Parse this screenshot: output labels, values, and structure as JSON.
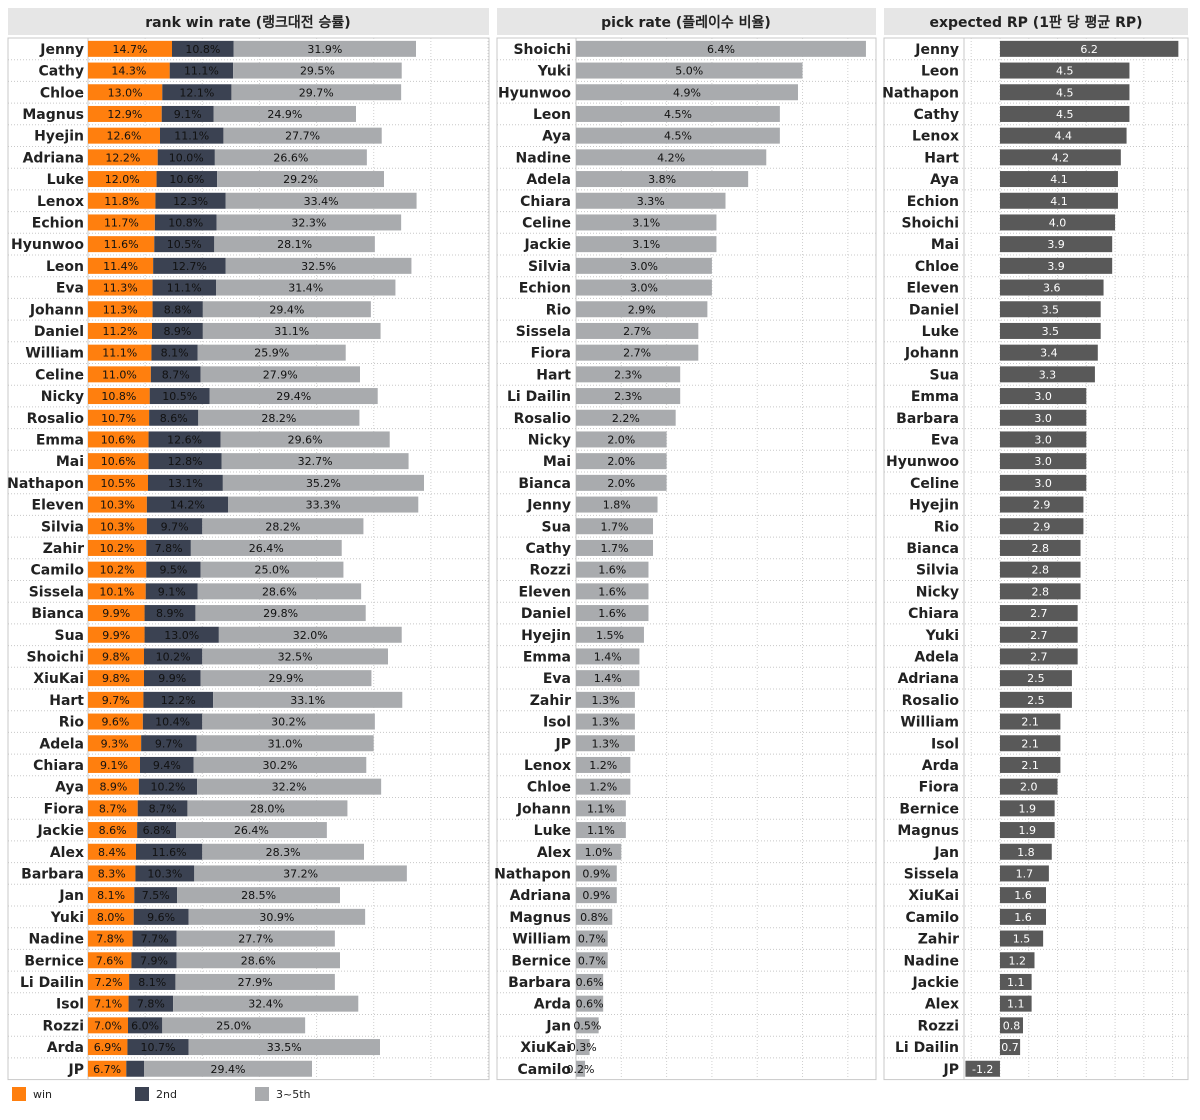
{
  "chart_data": [
    {
      "type": "bar",
      "stacked": true,
      "orientation": "horizontal",
      "title": "rank win rate (랭크대전 승률)",
      "categories": [
        "Jenny",
        "Cathy",
        "Chloe",
        "Magnus",
        "Hyejin",
        "Adriana",
        "Luke",
        "Lenox",
        "Echion",
        "Hyunwoo",
        "Leon",
        "Eva",
        "Johann",
        "Daniel",
        "William",
        "Celine",
        "Nicky",
        "Rosalio",
        "Emma",
        "Mai",
        "Nathapon",
        "Eleven",
        "Silvia",
        "Zahir",
        "Camilo",
        "Sissela",
        "Bianca",
        "Sua",
        "Shoichi",
        "XiuKai",
        "Hart",
        "Rio",
        "Adela",
        "Chiara",
        "Aya",
        "Fiora",
        "Jackie",
        "Alex",
        "Barbara",
        "Jan",
        "Yuki",
        "Nadine",
        "Bernice",
        "Li Dailin",
        "Isol",
        "Rozzi",
        "Arda",
        "JP"
      ],
      "series": [
        {
          "name": "win",
          "color": "#ff7f0e",
          "values": [
            14.7,
            14.3,
            13.0,
            12.9,
            12.6,
            12.2,
            12.0,
            11.8,
            11.7,
            11.6,
            11.4,
            11.3,
            11.3,
            11.2,
            11.1,
            11.0,
            10.8,
            10.7,
            10.6,
            10.6,
            10.5,
            10.3,
            10.3,
            10.2,
            10.2,
            10.1,
            9.9,
            9.9,
            9.8,
            9.8,
            9.7,
            9.6,
            9.3,
            9.1,
            8.9,
            8.7,
            8.6,
            8.4,
            8.3,
            8.1,
            8.0,
            7.8,
            7.6,
            7.2,
            7.1,
            7.0,
            6.9,
            6.7
          ],
          "labels": [
            "14.7%",
            "14.3%",
            "13.0%",
            "12.9%",
            "12.6%",
            "12.2%",
            "12.0%",
            "11.8%",
            "11.7%",
            "11.6%",
            "11.4%",
            "11.3%",
            "11.3%",
            "11.2%",
            "11.1%",
            "11.0%",
            "10.8%",
            "10.7%",
            "10.6%",
            "10.6%",
            "10.5%",
            "10.3%",
            "10.3%",
            "10.2%",
            "10.2%",
            "10.1%",
            "9.9%",
            "9.9%",
            "9.8%",
            "9.8%",
            "9.7%",
            "9.6%",
            "9.3%",
            "9.1%",
            "8.9%",
            "8.7%",
            "8.6%",
            "8.4%",
            "8.3%",
            "8.1%",
            "8.0%",
            "7.8%",
            "7.6%",
            "7.2%",
            "7.1%",
            "7.0%",
            "6.9%",
            "6.7%"
          ]
        },
        {
          "name": "2nd",
          "color": "#3b4252",
          "values": [
            10.8,
            11.1,
            12.1,
            9.1,
            11.1,
            10.0,
            10.6,
            12.3,
            10.8,
            10.5,
            12.7,
            11.1,
            8.8,
            8.9,
            8.1,
            8.7,
            10.5,
            8.6,
            12.6,
            12.8,
            13.1,
            14.2,
            9.7,
            7.8,
            9.5,
            9.1,
            8.9,
            13.0,
            10.2,
            9.9,
            12.2,
            10.4,
            9.7,
            9.4,
            10.2,
            8.7,
            6.8,
            11.6,
            10.3,
            7.5,
            9.6,
            7.7,
            7.9,
            8.1,
            7.8,
            6.0,
            10.7,
            3.1
          ],
          "labels": [
            "10.8%",
            "11.1%",
            "12.1%",
            "9.1%",
            "11.1%",
            "10.0%",
            "10.6%",
            "12.3%",
            "10.8%",
            "10.5%",
            "12.7%",
            "11.1%",
            "8.8%",
            "8.9%",
            "8.1%",
            "8.7%",
            "10.5%",
            "8.6%",
            "12.6%",
            "12.8%",
            "13.1%",
            "14.2%",
            "9.7%",
            "7.8%",
            "9.5%",
            "9.1%",
            "8.9%",
            "13.0%",
            "10.2%",
            "9.9%",
            "12.2%",
            "10.4%",
            "9.7%",
            "9.4%",
            "10.2%",
            "8.7%",
            "6.8%",
            "11.6%",
            "10.3%",
            "7.5%",
            "9.6%",
            "7.7%",
            "7.9%",
            "8.1%",
            "7.8%",
            "6.0%",
            "10.7%",
            ""
          ]
        },
        {
          "name": "3~5th",
          "color": "#a9abae",
          "values": [
            31.9,
            29.5,
            29.7,
            24.9,
            27.7,
            26.6,
            29.2,
            33.4,
            32.3,
            28.1,
            32.5,
            31.4,
            29.4,
            31.1,
            25.9,
            27.9,
            29.4,
            28.2,
            29.6,
            32.7,
            35.2,
            33.3,
            28.2,
            26.4,
            25.0,
            28.6,
            29.8,
            32.0,
            32.5,
            29.9,
            33.1,
            30.2,
            31.0,
            30.2,
            32.2,
            28.0,
            26.4,
            28.3,
            37.2,
            28.5,
            30.9,
            27.7,
            28.6,
            27.9,
            32.4,
            25.0,
            33.5,
            29.4
          ],
          "labels": [
            "31.9%",
            "29.5%",
            "29.7%",
            "24.9%",
            "27.7%",
            "26.6%",
            "29.2%",
            "33.4%",
            "32.3%",
            "28.1%",
            "32.5%",
            "31.4%",
            "29.4%",
            "31.1%",
            "25.9%",
            "27.9%",
            "29.4%",
            "28.2%",
            "29.6%",
            "32.7%",
            "35.2%",
            "33.3%",
            "28.2%",
            "26.4%",
            "25.0%",
            "28.6%",
            "29.8%",
            "32.0%",
            "32.5%",
            "29.9%",
            "33.1%",
            "30.2%",
            "31.0%",
            "30.2%",
            "32.2%",
            "28.0%",
            "26.4%",
            "28.3%",
            "37.2%",
            "28.5%",
            "30.9%",
            "27.7%",
            "28.6%",
            "27.9%",
            "32.4%",
            "25.0%",
            "33.5%",
            "29.4%"
          ]
        }
      ],
      "xlim": [
        0,
        70
      ],
      "grid": true
    },
    {
      "type": "bar",
      "orientation": "horizontal",
      "title": "pick rate (플레이수 비율)",
      "categories": [
        "Shoichi",
        "Yuki",
        "Hyunwoo",
        "Leon",
        "Aya",
        "Nadine",
        "Adela",
        "Chiara",
        "Celine",
        "Jackie",
        "Silvia",
        "Echion",
        "Rio",
        "Sissela",
        "Fiora",
        "Hart",
        "Li Dailin",
        "Rosalio",
        "Nicky",
        "Mai",
        "Bianca",
        "Jenny",
        "Sua",
        "Cathy",
        "Rozzi",
        "Eleven",
        "Daniel",
        "Hyejin",
        "Emma",
        "Eva",
        "Zahir",
        "Isol",
        "JP",
        "Lenox",
        "Chloe",
        "Johann",
        "Luke",
        "Alex",
        "Nathapon",
        "Adriana",
        "Magnus",
        "William",
        "Bernice",
        "Barbara",
        "Arda",
        "Jan",
        "XiuKai",
        "Camilo"
      ],
      "values": [
        6.4,
        5.0,
        4.9,
        4.5,
        4.5,
        4.2,
        3.8,
        3.3,
        3.1,
        3.1,
        3.0,
        3.0,
        2.9,
        2.7,
        2.7,
        2.3,
        2.3,
        2.2,
        2.0,
        2.0,
        2.0,
        1.8,
        1.7,
        1.7,
        1.6,
        1.6,
        1.6,
        1.5,
        1.4,
        1.4,
        1.3,
        1.3,
        1.3,
        1.2,
        1.2,
        1.1,
        1.1,
        1.0,
        0.9,
        0.9,
        0.8,
        0.7,
        0.7,
        0.6,
        0.6,
        0.5,
        0.3,
        0.2
      ],
      "labels": [
        "6.4%",
        "5.0%",
        "4.9%",
        "4.5%",
        "4.5%",
        "4.2%",
        "3.8%",
        "3.3%",
        "3.1%",
        "3.1%",
        "3.0%",
        "3.0%",
        "2.9%",
        "2.7%",
        "2.7%",
        "2.3%",
        "2.3%",
        "2.2%",
        "2.0%",
        "2.0%",
        "2.0%",
        "1.8%",
        "1.7%",
        "1.7%",
        "1.6%",
        "1.6%",
        "1.6%",
        "1.5%",
        "1.4%",
        "1.4%",
        "1.3%",
        "1.3%",
        "1.3%",
        "1.2%",
        "1.2%",
        "1.1%",
        "1.1%",
        "1.0%",
        "0.9%",
        "0.9%",
        "0.8%",
        "0.7%",
        "0.7%",
        "0.6%",
        "0.6%",
        "0.5%",
        "0.3%",
        "0.2%"
      ],
      "color": "#a9abae",
      "xlim": [
        0,
        6.6
      ],
      "grid": true
    },
    {
      "type": "bar",
      "orientation": "horizontal",
      "title": "expected RP (1판 당 평균 RP)",
      "categories": [
        "Jenny",
        "Leon",
        "Nathapon",
        "Cathy",
        "Lenox",
        "Hart",
        "Aya",
        "Echion",
        "Shoichi",
        "Mai",
        "Chloe",
        "Eleven",
        "Daniel",
        "Luke",
        "Johann",
        "Sua",
        "Emma",
        "Barbara",
        "Eva",
        "Hyunwoo",
        "Celine",
        "Hyejin",
        "Rio",
        "Bianca",
        "Silvia",
        "Nicky",
        "Chiara",
        "Yuki",
        "Adela",
        "Adriana",
        "Rosalio",
        "William",
        "Isol",
        "Arda",
        "Fiora",
        "Bernice",
        "Magnus",
        "Jan",
        "Sissela",
        "XiuKai",
        "Camilo",
        "Zahir",
        "Nadine",
        "Jackie",
        "Alex",
        "Rozzi",
        "Li Dailin",
        "JP"
      ],
      "values": [
        6.2,
        4.5,
        4.5,
        4.5,
        4.4,
        4.2,
        4.1,
        4.1,
        4.0,
        3.9,
        3.9,
        3.6,
        3.5,
        3.5,
        3.4,
        3.3,
        3.0,
        3.0,
        3.0,
        3.0,
        3.0,
        2.9,
        2.9,
        2.8,
        2.8,
        2.8,
        2.7,
        2.7,
        2.7,
        2.5,
        2.5,
        2.1,
        2.1,
        2.1,
        2.0,
        1.9,
        1.9,
        1.8,
        1.7,
        1.6,
        1.6,
        1.5,
        1.2,
        1.1,
        1.1,
        0.8,
        0.7,
        -1.2
      ],
      "labels": [
        "6.2",
        "4.5",
        "4.5",
        "4.5",
        "4.4",
        "4.2",
        "4.1",
        "4.1",
        "4.0",
        "3.9",
        "3.9",
        "3.6",
        "3.5",
        "3.5",
        "3.4",
        "3.3",
        "3.0",
        "3.0",
        "3.0",
        "3.0",
        "3.0",
        "2.9",
        "2.9",
        "2.8",
        "2.8",
        "2.8",
        "2.7",
        "2.7",
        "2.7",
        "2.5",
        "2.5",
        "2.1",
        "2.1",
        "2.1",
        "2.0",
        "1.9",
        "1.9",
        "1.8",
        "1.7",
        "1.6",
        "1.6",
        "1.5",
        "1.2",
        "1.1",
        "1.1",
        "0.8",
        "0.7",
        "-1.2"
      ],
      "color": "#595959",
      "xlim": [
        -1.25,
        6.5
      ],
      "grid": true
    }
  ],
  "legend": [
    {
      "label": "win",
      "color": "#ff7f0e"
    },
    {
      "label": "2nd",
      "color": "#3b4252"
    },
    {
      "label": "3~5th",
      "color": "#a9abae"
    }
  ]
}
